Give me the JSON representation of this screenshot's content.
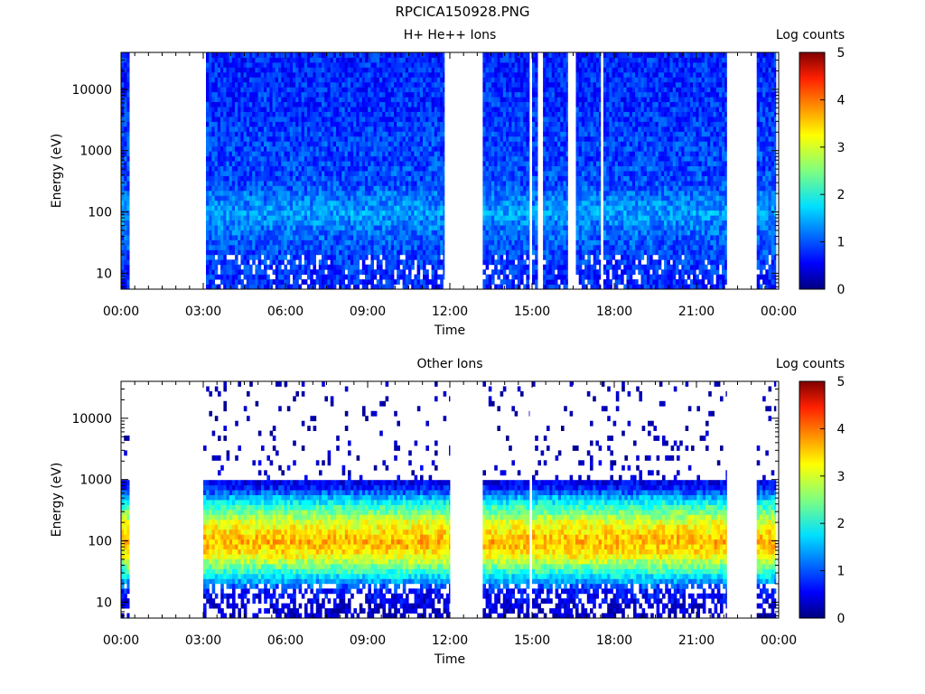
{
  "title": "RPCICA150928.PNG",
  "chart_data": [
    {
      "type": "heatmap",
      "title": "H+ He++ Ions",
      "xlabel": "Time",
      "ylabel": "Energy (eV)",
      "x_tick_labels": [
        "00:00",
        "03:00",
        "06:00",
        "09:00",
        "12:00",
        "15:00",
        "18:00",
        "21:00",
        "00:00"
      ],
      "xlim_hours": [
        0,
        24
      ],
      "y_scale": "log",
      "ylim": [
        5.5,
        40000
      ],
      "y_tick_labels": [
        "10",
        "100",
        "1000",
        "10000"
      ],
      "y_tick_values": [
        10,
        100,
        1000,
        10000
      ],
      "colorbar": {
        "label": "Log counts",
        "range": [
          0,
          5
        ],
        "tick_labels": [
          "0",
          "1",
          "2",
          "3",
          "4",
          "5"
        ]
      },
      "data_intervals_hours": [
        [
          0.0,
          0.3
        ],
        [
          3.1,
          11.8
        ],
        [
          13.2,
          14.9
        ],
        [
          15.0,
          15.2
        ],
        [
          15.4,
          16.3
        ],
        [
          16.6,
          17.5
        ],
        [
          17.6,
          22.1
        ],
        [
          23.2,
          23.9
        ]
      ],
      "level_profile": {
        "note": "Log counts by energy band",
        "energy_eV": [
          7,
          15,
          40,
          100,
          300,
          1000,
          5000,
          20000
        ],
        "log_counts": [
          0.8,
          0.9,
          1.1,
          1.4,
          1.0,
          0.95,
          0.85,
          0.8
        ]
      }
    },
    {
      "type": "heatmap",
      "title": "Other Ions",
      "xlabel": "Time",
      "ylabel": "Energy (eV)",
      "x_tick_labels": [
        "00:00",
        "03:00",
        "06:00",
        "09:00",
        "12:00",
        "15:00",
        "18:00",
        "21:00",
        "00:00"
      ],
      "xlim_hours": [
        0,
        24
      ],
      "y_scale": "log",
      "ylim": [
        5.5,
        40000
      ],
      "y_tick_labels": [
        "10",
        "100",
        "1000",
        "10000"
      ],
      "y_tick_values": [
        10,
        100,
        1000,
        10000
      ],
      "colorbar": {
        "label": "Log counts",
        "range": [
          0,
          5
        ],
        "tick_labels": [
          "0",
          "1",
          "2",
          "3",
          "4",
          "5"
        ]
      },
      "data_intervals_hours": [
        [
          0.0,
          0.3
        ],
        [
          3.0,
          12.0
        ],
        [
          13.2,
          14.9
        ],
        [
          15.0,
          22.1
        ],
        [
          23.2,
          23.9
        ]
      ],
      "level_profile": {
        "note": "Log counts by energy band",
        "energy_eV": [
          7,
          15,
          30,
          60,
          100,
          200,
          400,
          800,
          3000,
          20000
        ],
        "log_counts": [
          0.3,
          0.7,
          2.0,
          3.2,
          3.5,
          3.0,
          2.0,
          0.6,
          0.15,
          0.1
        ]
      }
    }
  ]
}
